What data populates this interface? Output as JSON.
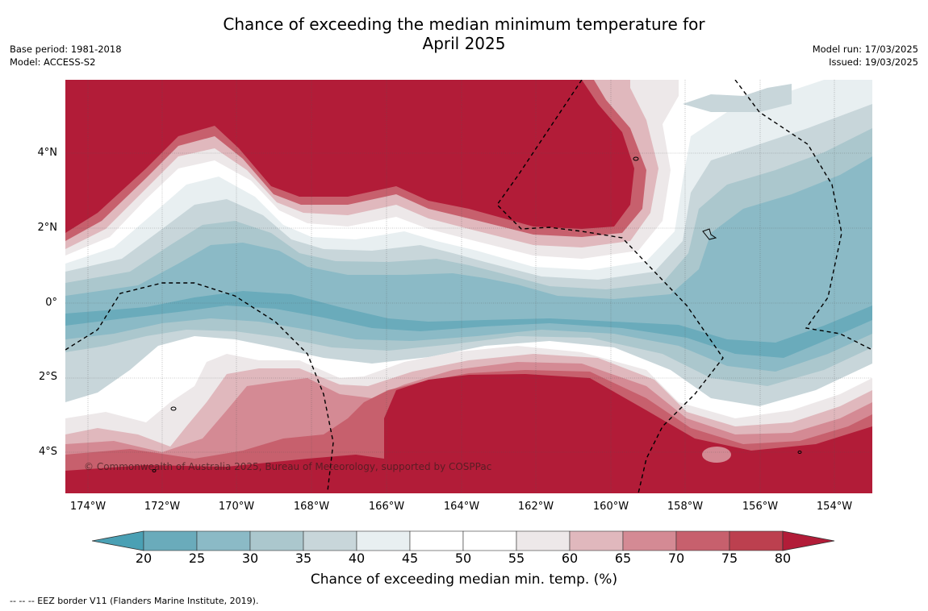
{
  "title": {
    "line1": "Chance of exceeding the median minimum temperature for",
    "line2": "April 2025"
  },
  "meta_left": {
    "base_period": "Base period: 1981-2018",
    "model": "Model: ACCESS-S2"
  },
  "meta_right": {
    "model_run": "Model run: 17/03/2025",
    "issued": "Issued: 19/03/2025"
  },
  "map": {
    "lat_labels": [
      "4°N",
      "2°N",
      "0°",
      "2°S",
      "4°S"
    ],
    "lon_labels": [
      "174°W",
      "172°W",
      "170°W",
      "168°W",
      "166°W",
      "164°W",
      "162°W",
      "160°W",
      "158°W",
      "156°W",
      "154°W"
    ],
    "copyright": "© Commonwealth of Australia 2025, Bureau of Meteorology, supported by COSPPac",
    "colors": {
      "cool_strong": "#4aa0b4",
      "neutral": "#ffffff",
      "warm_strong": "#b21c38"
    },
    "border_style": "dashed black EEZ lines"
  },
  "colorbar": {
    "ticks": [
      "20",
      "25",
      "30",
      "35",
      "40",
      "45",
      "50",
      "55",
      "60",
      "65",
      "70",
      "75",
      "80"
    ],
    "colors": [
      "#4aa0b4",
      "#6aabbb",
      "#8bbac6",
      "#abc7cd",
      "#c8d6da",
      "#e8eff1",
      "#ffffff",
      "#ffffff",
      "#ede8e9",
      "#e0b8bd",
      "#d48a94",
      "#c7606d",
      "#bc404f",
      "#b21c38"
    ],
    "label": "Chance of exceeding median min. temp. (%)"
  },
  "footnote": "--  --  -- EEZ border V11 (Flanders Marine Institute, 2019)."
}
